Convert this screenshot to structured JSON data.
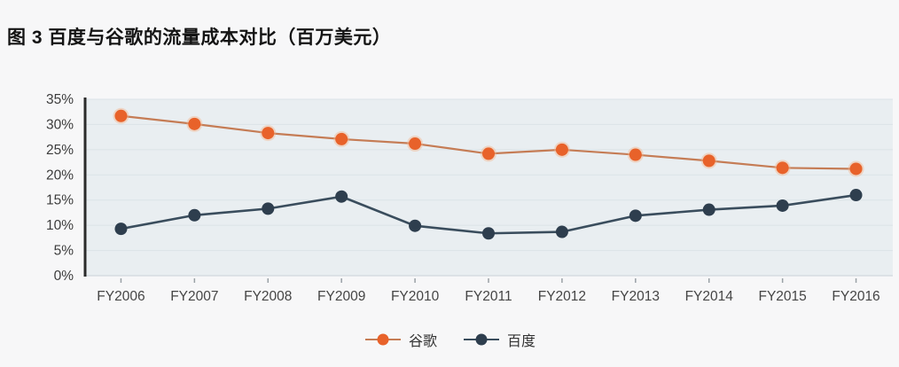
{
  "title": "图 3 百度与谷歌的流量成本对比（百万美元）",
  "chart_data": {
    "type": "line",
    "title": "图 3 百度与谷歌的流量成本对比（百万美元）",
    "categories": [
      "FY2006",
      "FY2007",
      "FY2008",
      "FY2009",
      "FY2010",
      "FY2011",
      "FY2012",
      "FY2013",
      "FY2014",
      "FY2015",
      "FY2016"
    ],
    "series": [
      {
        "name": "谷歌",
        "color": "#e8622a",
        "line_color": "#c57c55",
        "marker_halo": "#f3b48c",
        "values": [
          31.7,
          30.1,
          28.3,
          27.1,
          26.2,
          24.2,
          25.0,
          24.0,
          22.8,
          21.4,
          21.2
        ]
      },
      {
        "name": "百度",
        "color": "#2e3e4e",
        "line_color": "#3a4d5d",
        "values": [
          9.3,
          12.0,
          13.3,
          15.7,
          9.9,
          8.4,
          8.7,
          11.9,
          13.1,
          13.9,
          16.0
        ]
      }
    ],
    "xlabel": "",
    "ylabel": "",
    "ylim": [
      0,
      35
    ],
    "ytick_step": 5,
    "ytick_suffix": "%",
    "grid": true,
    "legend_position": "bottom",
    "colors": {
      "page_bg": "#f7f7f8",
      "plot_bg": "#e9eef1",
      "grid": "#dbe3e7",
      "bottom_edge": "#c9d2d7",
      "axis_line": "#2b2b2b",
      "tick": "#9aa1a6",
      "y_label": "#3c3c3c",
      "x_label": "#454545",
      "title": "#141414"
    }
  }
}
